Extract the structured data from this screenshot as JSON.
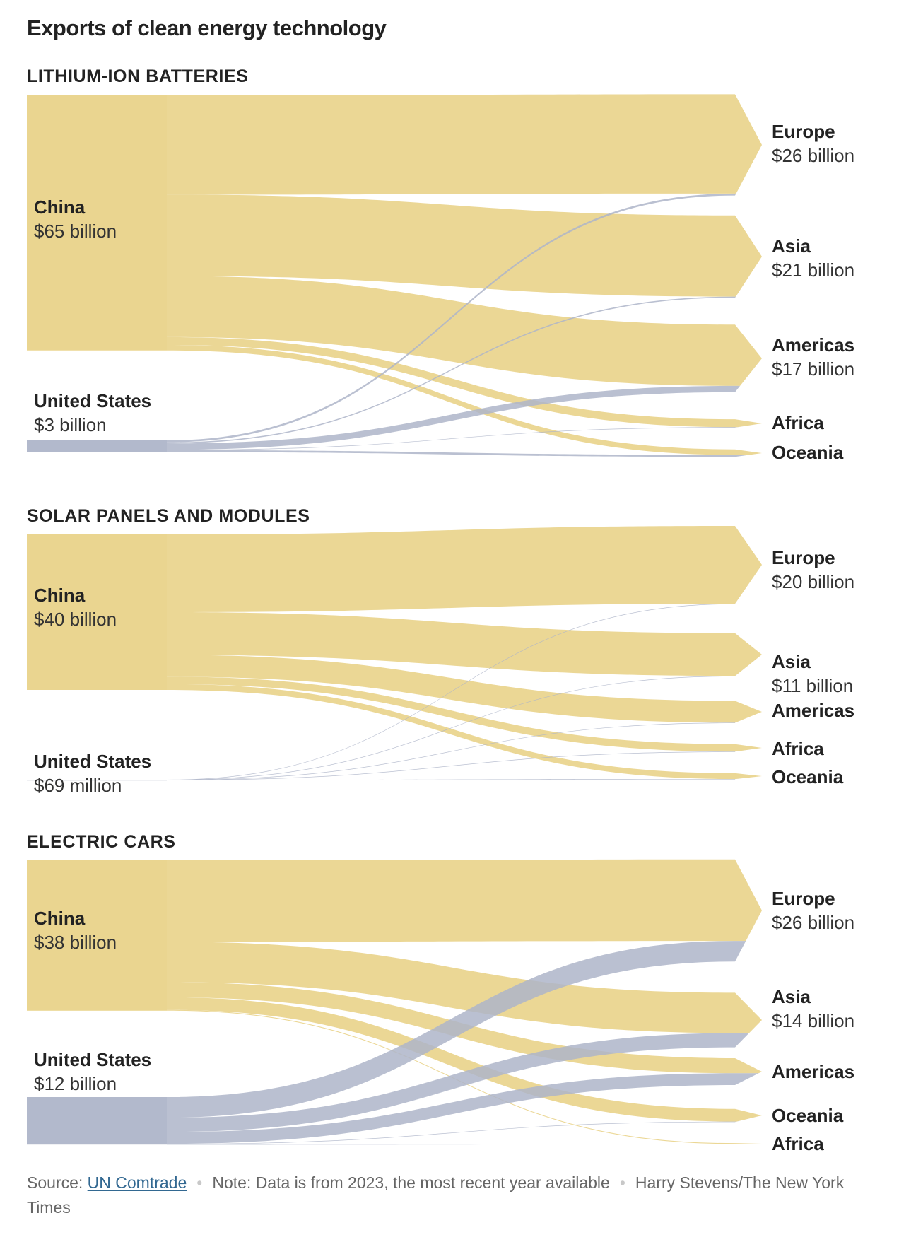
{
  "title": "Exports of clean energy technology",
  "colors": {
    "china": "#e9d38a",
    "us": "#aeb5c9"
  },
  "footer": {
    "source_prefix": "Source: ",
    "source_link": "UN Comtrade",
    "note": "Note: Data is from 2023, the most recent year available",
    "credit": "Harry Stevens/The New York Times"
  },
  "chart_data": [
    {
      "type": "sankey",
      "title": "LITHIUM-ION BATTERIES",
      "sources": [
        {
          "id": "china",
          "label": "China",
          "value_label": "$65 billion",
          "value": 65
        },
        {
          "id": "us",
          "label": "United States",
          "value_label": "$3 billion",
          "value": 3
        }
      ],
      "targets": [
        {
          "id": "europe",
          "label": "Europe",
          "value_label": "$26 billion"
        },
        {
          "id": "asia",
          "label": "Asia",
          "value_label": "$21 billion"
        },
        {
          "id": "americas",
          "label": "Americas",
          "value_label": "$17 billion"
        },
        {
          "id": "africa",
          "label": "Africa",
          "value_label": ""
        },
        {
          "id": "oceania",
          "label": "Oceania",
          "value_label": ""
        }
      ],
      "flows": {
        "china": {
          "europe": 25.3,
          "asia": 20.7,
          "americas": 15.6,
          "africa": 2.0,
          "oceania": 1.4
        },
        "us": {
          "europe": 0.5,
          "asia": 0.3,
          "americas": 1.6,
          "africa": 0.1,
          "oceania": 0.5
        }
      }
    },
    {
      "type": "sankey",
      "title": "SOLAR PANELS AND MODULES",
      "sources": [
        {
          "id": "china",
          "label": "China",
          "value_label": "$40 billion",
          "value": 40
        },
        {
          "id": "us",
          "label": "United States",
          "value_label": "$69 million",
          "value": 0.069
        }
      ],
      "targets": [
        {
          "id": "europe",
          "label": "Europe",
          "value_label": "$20 billion"
        },
        {
          "id": "asia",
          "label": "Asia",
          "value_label": "$11 billion"
        },
        {
          "id": "americas",
          "label": "Americas",
          "value_label": ""
        },
        {
          "id": "africa",
          "label": "Africa",
          "value_label": ""
        },
        {
          "id": "oceania",
          "label": "Oceania",
          "value_label": ""
        }
      ],
      "flows": {
        "china": {
          "europe": 20.0,
          "asia": 11.0,
          "americas": 5.6,
          "africa": 1.9,
          "oceania": 1.5
        },
        "us": {
          "europe": 0.015,
          "asia": 0.015,
          "americas": 0.02,
          "africa": 0.01,
          "oceania": 0.009
        }
      }
    },
    {
      "type": "sankey",
      "title": "ELECTRIC CARS",
      "sources": [
        {
          "id": "china",
          "label": "China",
          "value_label": "$38 billion",
          "value": 38
        },
        {
          "id": "us",
          "label": "United States",
          "value_label": "$12 billion",
          "value": 12
        }
      ],
      "targets": [
        {
          "id": "europe",
          "label": "Europe",
          "value_label": "$26 billion"
        },
        {
          "id": "asia",
          "label": "Asia",
          "value_label": "$14 billion"
        },
        {
          "id": "americas",
          "label": "Americas",
          "value_label": ""
        },
        {
          "id": "oceania",
          "label": "Oceania",
          "value_label": ""
        },
        {
          "id": "africa",
          "label": "Africa",
          "value_label": ""
        }
      ],
      "flows": {
        "china": {
          "europe": 20.6,
          "asia": 10.2,
          "americas": 3.8,
          "oceania": 3.2,
          "africa": 0.2
        },
        "us": {
          "europe": 5.2,
          "asia": 3.6,
          "americas": 3.0,
          "oceania": 0.1,
          "africa": 0.1
        }
      }
    }
  ]
}
